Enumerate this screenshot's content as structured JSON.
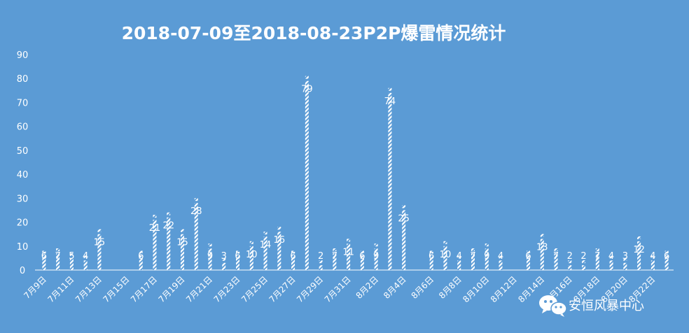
{
  "chart_data": {
    "type": "bar",
    "title": "2018-07-09至2018-08-23P2P爆雷情况统计",
    "xlabel": "",
    "ylabel": "",
    "ylim": [
      0,
      90
    ],
    "yticks": [
      0,
      10,
      20,
      30,
      40,
      50,
      60,
      70,
      80,
      90
    ],
    "grid": false,
    "legend": "none",
    "bar_fill": "white diagonal hatch",
    "categories": [
      "7月9日",
      "7月10日",
      "7月11日",
      "7月12日",
      "7月13日",
      "7月14日",
      "7月15日",
      "7月16日",
      "7月17日",
      "7月18日",
      "7月19日",
      "7月20日",
      "7月21日",
      "7月22日",
      "7月23日",
      "7月24日",
      "7月25日",
      "7月26日",
      "7月27日",
      "7月28日",
      "7月29日",
      "7月30日",
      "7月31日",
      "8月1日",
      "8月2日",
      "8月3日",
      "8月4日",
      "8月5日",
      "8月6日",
      "8月7日",
      "8月8日",
      "8月9日",
      "8月10日",
      "8月11日",
      "8月12日",
      "8月13日",
      "8月14日",
      "8月15日",
      "8月16日",
      "8月17日",
      "8月18日",
      "8月19日",
      "8月20日",
      "8月21日",
      "8月22日",
      "8月23日"
    ],
    "values": [
      6,
      7,
      5,
      4,
      15,
      null,
      null,
      6,
      21,
      22,
      15,
      28,
      9,
      3,
      6,
      10,
      14,
      16,
      6,
      79,
      2,
      7,
      11,
      6,
      9,
      74,
      25,
      null,
      6,
      10,
      4,
      7,
      9,
      4,
      null,
      6,
      13,
      7,
      2,
      2,
      7,
      4,
      3,
      12,
      4,
      6
    ],
    "data_labels": [
      "6",
      "7",
      "5",
      "4",
      "15",
      "",
      "",
      "6",
      "21",
      "22",
      "15",
      "28",
      "9",
      "3",
      "6",
      "10",
      "14",
      "16",
      "6",
      "79",
      "2",
      "7",
      "11",
      "6",
      "9",
      "74",
      "25",
      "",
      "6",
      "10",
      "4",
      "7",
      "9",
      "4",
      "",
      "6",
      "13",
      "7",
      "2",
      "2",
      "7",
      "4",
      "3",
      "12",
      "4",
      "6"
    ],
    "xtick_labels": [
      "7月9日",
      "",
      "7月11日",
      "",
      "7月13日",
      "",
      "7月15日",
      "",
      "7月17日",
      "",
      "7月19日",
      "",
      "7月21日",
      "",
      "7月23日",
      "",
      "7月25日",
      "",
      "7月27日",
      "",
      "7月29日",
      "",
      "7月31日",
      "",
      "8月2日",
      "",
      "8月4日",
      "",
      "8月6日",
      "",
      "8月8日",
      "",
      "8月10日",
      "",
      "8月12日",
      "",
      "8月14日",
      "",
      "8月16日",
      "",
      "8月18日",
      "",
      "8月20日",
      "",
      "8月22日",
      ""
    ]
  },
  "watermark": {
    "text": "安恒风暴中心",
    "icon": "wechat-icon"
  },
  "colors": {
    "background": "#5b9bd5",
    "foreground": "#ffffff"
  }
}
